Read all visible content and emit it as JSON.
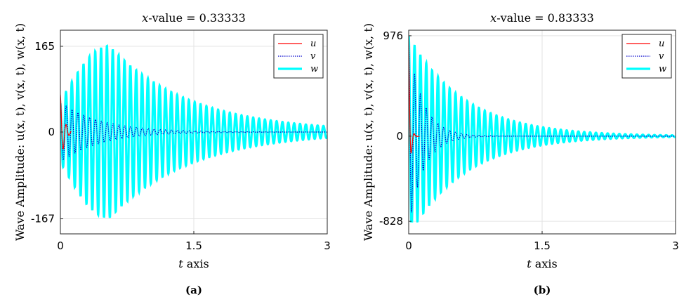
{
  "chart_data": [
    {
      "type": "line",
      "panel": "a",
      "caption": "(a)",
      "title_var": "x",
      "title_rest": "-value = 0.33333",
      "xlabel_var": "t",
      "xlabel_rest": "axis",
      "ylabel": "Wave Amplitude: u(x, t), v(x, t), w(x, t)",
      "xlim": [
        0,
        3
      ],
      "ylim": [
        -196,
        196
      ],
      "xticks": [
        {
          "v": 0,
          "label": "0"
        },
        {
          "v": 1.5,
          "label": "1.5"
        },
        {
          "v": 3,
          "label": "3"
        }
      ],
      "yticks": [
        {
          "v": 165,
          "label": "165"
        },
        {
          "v": 0,
          "label": "0"
        },
        {
          "v": -167,
          "label": "-167"
        }
      ],
      "legend": [
        "u",
        "v",
        "w"
      ],
      "legend_position": "top-right",
      "series": [
        {
          "name": "u",
          "color": "#ff0000",
          "start": 72,
          "decay": 25,
          "freq": 15.2
        },
        {
          "name": "v",
          "color": "#0000cc",
          "start": 58,
          "decay": 2.2,
          "freq": 15.2,
          "dotted": true
        },
        {
          "name": "w",
          "color": "#00ffff",
          "peak": 166,
          "peak_t": 0.55,
          "freq": 15.2,
          "end_amp": 8
        }
      ]
    },
    {
      "type": "line",
      "panel": "b",
      "caption": "(b)",
      "title_var": "x",
      "title_rest": "-value = 0.83333",
      "xlabel_var": "t",
      "xlabel_rest": "axis",
      "ylabel": "Wave Amplitude: u(x, t), v(x, t), w(x, t)",
      "xlim": [
        0,
        3
      ],
      "ylim": [
        -950,
        1030
      ],
      "xticks": [
        {
          "v": 0,
          "label": "0"
        },
        {
          "v": 1.5,
          "label": "1.5"
        },
        {
          "v": 3,
          "label": "3"
        }
      ],
      "yticks": [
        {
          "v": 976,
          "label": "976"
        },
        {
          "v": 0,
          "label": "0"
        },
        {
          "v": -828,
          "label": "-828"
        }
      ],
      "legend": [
        "u",
        "v",
        "w"
      ],
      "legend_position": "top-right",
      "series": [
        {
          "name": "u",
          "color": "#ff0000",
          "start": 976,
          "decay": 60,
          "freq": 15.2
        },
        {
          "name": "v",
          "color": "#0000cc",
          "start": 900,
          "decay": 6,
          "freq": 15.2,
          "dotted": true
        },
        {
          "name": "w",
          "color": "#00ffff",
          "start": 976,
          "decay": 1.6,
          "freq": 15.2,
          "min": -828
        }
      ]
    }
  ]
}
